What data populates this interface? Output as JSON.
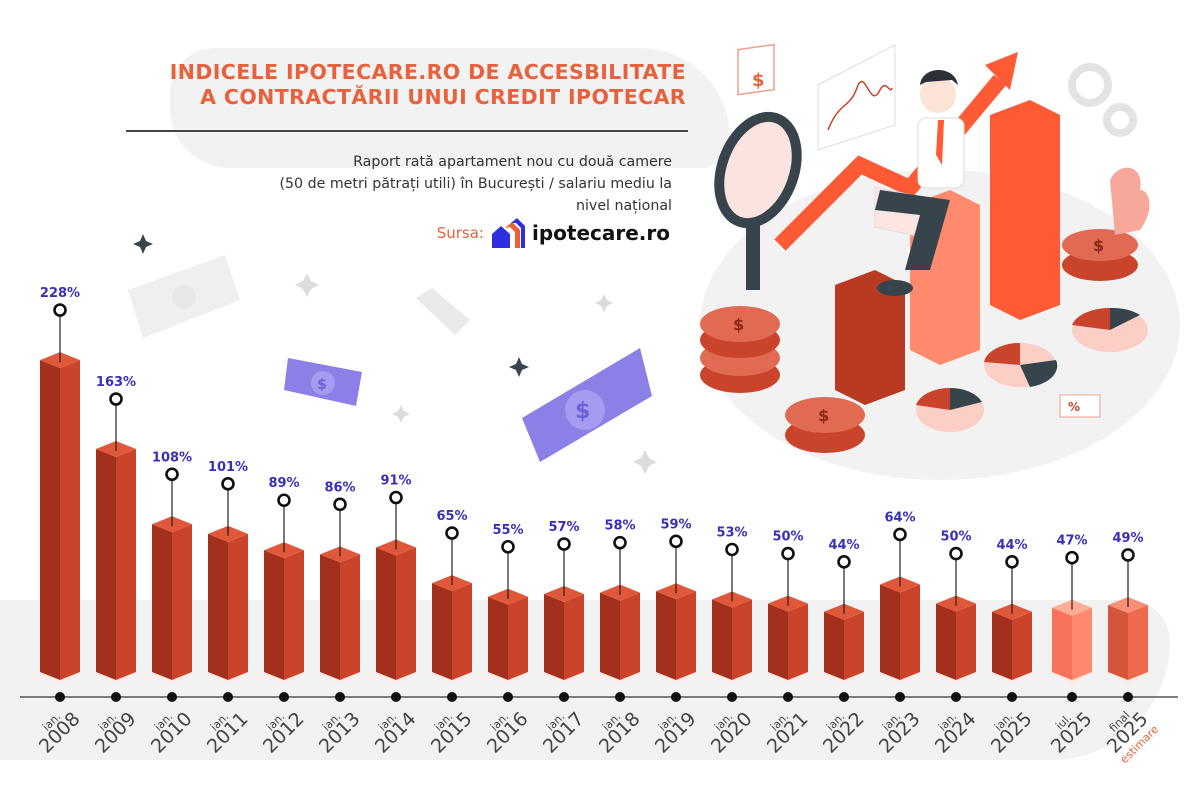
{
  "header": {
    "title_line1": "INDICELE IPOTECARE.RO DE ACCESBILITATE",
    "title_line2": "A CONTRACTĂRII UNUI CREDIT IPOTECAR",
    "subtitle_line1": "Raport rată apartament nou cu două camere",
    "subtitle_line2": "(50 de metri pătrați utili) în București / salariu mediu la nivel național",
    "source_label": "Sursa:",
    "source_brand": "ipotecare.ro"
  },
  "colors": {
    "title": "#e8613d",
    "value_label": "#3a2fb8",
    "bar_front": "#c9442a",
    "bar_side": "#a3301c",
    "bar_top": "#e0573a",
    "bar_light_front": "#ff8a6e",
    "bar_light_side": "#f7735a",
    "bar_light_top": "#ffad99",
    "bar_est_front": "#ee6a4d",
    "bar_est_side": "#d5553c",
    "bar_est_top": "#f78e76",
    "axis": "#555555",
    "estimate_note": "#e8613d"
  },
  "chart_data": {
    "type": "bar",
    "title": "Indicele ipotecare.ro de accesibilitate a contractării unui credit ipotecar",
    "subtitle": "Raport rată apartament nou cu două camere (50 de metri pătrați utili) în București / salariu mediu la nivel național",
    "xlabel": "",
    "ylabel": "",
    "unit": "%",
    "grid": false,
    "legend": null,
    "categories": [
      "ian. 2008",
      "ian. 2009",
      "ian. 2010",
      "ian. 2011",
      "ian. 2012",
      "ian. 2013",
      "ian. 2014",
      "ian. 2015",
      "ian. 2016",
      "ian. 2017",
      "ian. 2018",
      "ian. 2019",
      "ian. 2020",
      "ian. 2021",
      "ian. 2022",
      "ian. 2023",
      "ian. 2024",
      "ian. 2025",
      "iul. 2025",
      "final 2025"
    ],
    "values": [
      228,
      163,
      108,
      101,
      89,
      86,
      91,
      65,
      55,
      57,
      58,
      59,
      53,
      50,
      44,
      64,
      50,
      44,
      47,
      49
    ],
    "labels": [
      "228%",
      "163%",
      "108%",
      "101%",
      "89%",
      "86%",
      "91%",
      "65%",
      "55%",
      "57%",
      "58%",
      "59%",
      "53%",
      "50%",
      "44%",
      "64%",
      "50%",
      "44%",
      "47%",
      "49%"
    ],
    "annotations": [
      {
        "category": "final 2025",
        "text": "estimare"
      }
    ],
    "ylim": [
      0,
      240
    ]
  },
  "axis": {
    "ticks": [
      {
        "prefix": "ian.",
        "year": "2008"
      },
      {
        "prefix": "ian.",
        "year": "2009"
      },
      {
        "prefix": "ian.",
        "year": "2010"
      },
      {
        "prefix": "ian.",
        "year": "2011"
      },
      {
        "prefix": "ian.",
        "year": "2012"
      },
      {
        "prefix": "ian.",
        "year": "2013"
      },
      {
        "prefix": "ian.",
        "year": "2014"
      },
      {
        "prefix": "ian.",
        "year": "2015"
      },
      {
        "prefix": "ian.",
        "year": "2016"
      },
      {
        "prefix": "ian.",
        "year": "2017"
      },
      {
        "prefix": "ian.",
        "year": "2018"
      },
      {
        "prefix": "ian.",
        "year": "2019"
      },
      {
        "prefix": "ian.",
        "year": "2020"
      },
      {
        "prefix": "ian.",
        "year": "2021"
      },
      {
        "prefix": "ian.",
        "year": "2022"
      },
      {
        "prefix": "ian.",
        "year": "2023"
      },
      {
        "prefix": "ian.",
        "year": "2024"
      },
      {
        "prefix": "ian.",
        "year": "2025"
      },
      {
        "prefix": "iul.",
        "year": "2025"
      },
      {
        "prefix": "final",
        "year": "2025",
        "note": "estimare"
      }
    ]
  },
  "decorations": {
    "icons": [
      "dollar-bill-icon",
      "sparkle-icon",
      "magnifier-icon",
      "coin-stack-icon",
      "pie-chart-icon",
      "gear-icon",
      "trend-arrow-icon",
      "percent-tag-icon",
      "businessman-illustration"
    ]
  }
}
